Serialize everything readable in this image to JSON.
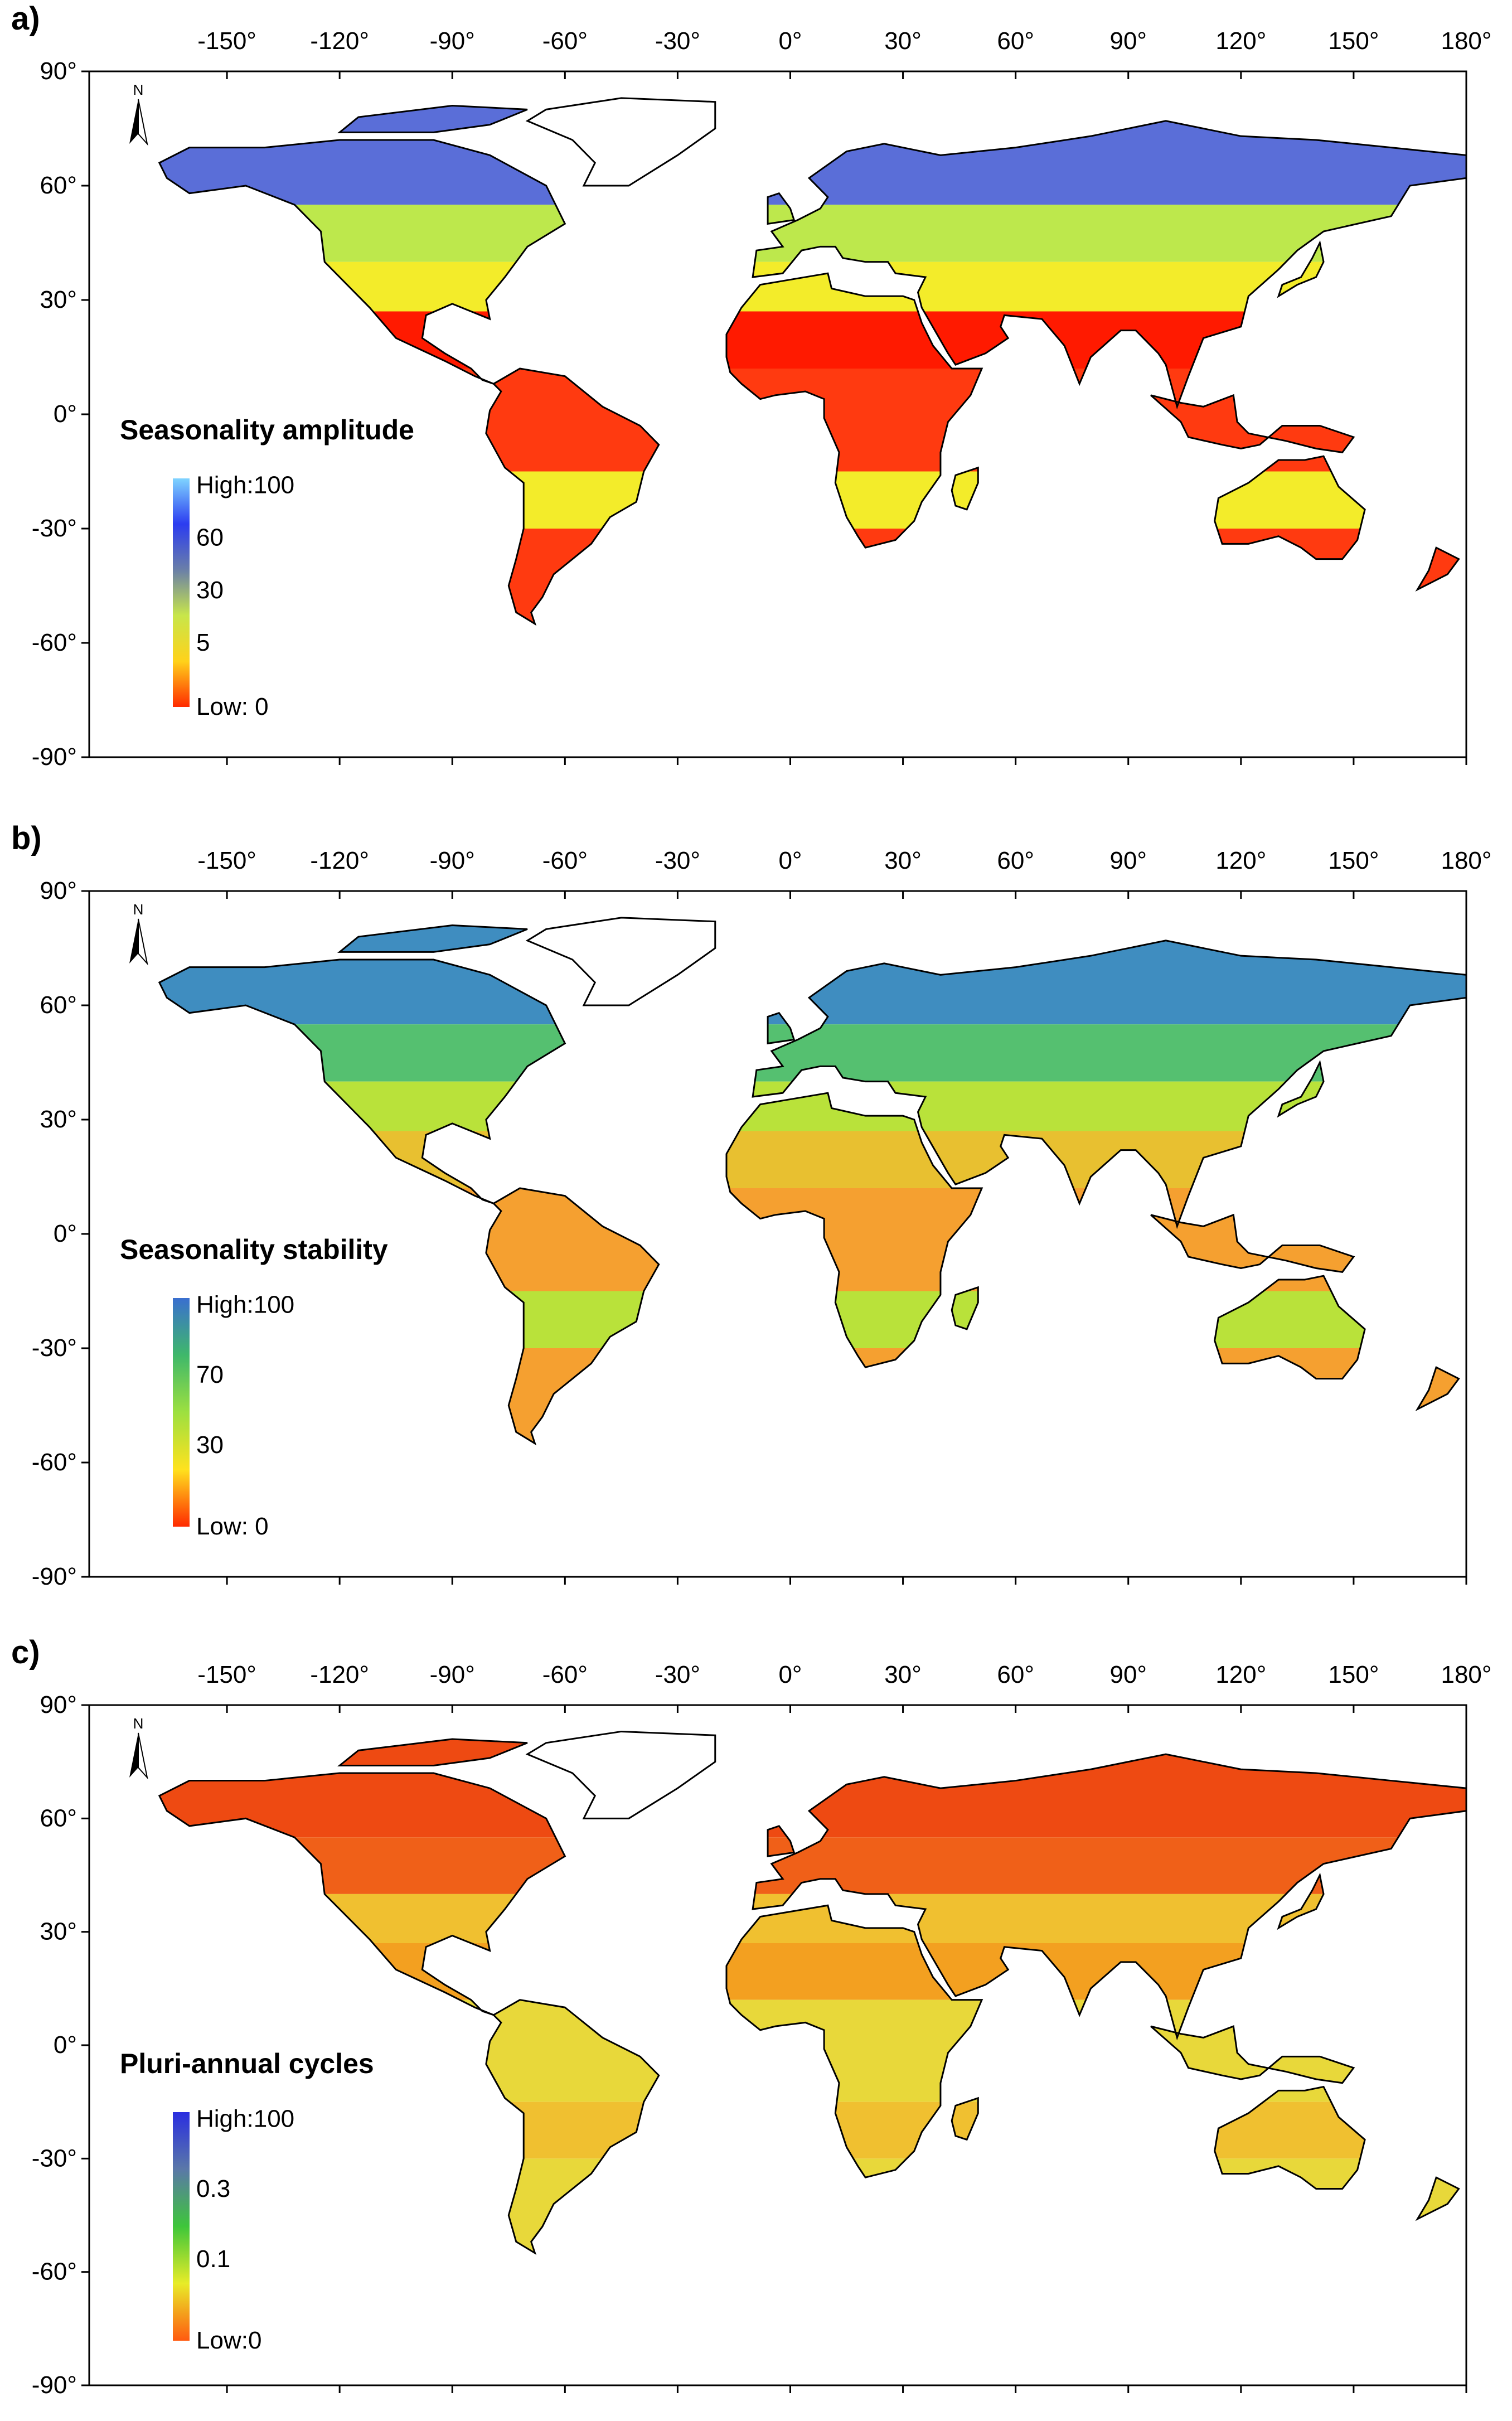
{
  "longitude_ticks": [
    "-150°",
    "-120°",
    "-90°",
    "-60°",
    "-30°",
    "0°",
    "30°",
    "60°",
    "90°",
    "120°",
    "150°",
    "180°"
  ],
  "latitude_ticks": [
    "90°",
    "60°",
    "30°",
    "0°",
    "-30°",
    "-60°",
    "-90°"
  ],
  "north_arrow_label": "N",
  "panels": [
    {
      "letter": "a)",
      "legend_title": "Seasonality amplitude",
      "legend_labels": [
        "High:100",
        "60",
        "30",
        "5",
        "Low: 0"
      ],
      "ramp_colors": [
        "#7fd4ff",
        "#2b3cf0",
        "#6a7fa8",
        "#c8e64a",
        "#ffd21a",
        "#ff2a00"
      ],
      "land_colors": {
        "north": "#5a6ed8",
        "midnorth": "#bde84c",
        "mid": "#f3ec2a",
        "tropic": "#ff3a10",
        "desert": "#ff1a00"
      }
    },
    {
      "letter": "b)",
      "legend_title": "Seasonality stability",
      "legend_labels": [
        "High:100",
        "70",
        "30",
        "Low: 0"
      ],
      "ramp_colors": [
        "#3a6fd0",
        "#3fb86a",
        "#9de040",
        "#ffe21e",
        "#ff2a00"
      ],
      "land_colors": {
        "north": "#3f8dc0",
        "midnorth": "#55c070",
        "mid": "#b9e23a",
        "tropic": "#f5a030",
        "desert": "#e8c030"
      }
    },
    {
      "letter": "c)",
      "legend_title": "Pluri-annual cycles",
      "legend_labels": [
        "High:100",
        "0.3",
        "0.1",
        "Low:0"
      ],
      "ramp_colors": [
        "#2a2ee0",
        "#5a78a8",
        "#3ec63a",
        "#e8ec28",
        "#ff5a10"
      ],
      "land_colors": {
        "north": "#ee4a12",
        "midnorth": "#f06018",
        "mid": "#f0c030",
        "tropic": "#e8d83a",
        "desert": "#f3a020"
      }
    }
  ]
}
